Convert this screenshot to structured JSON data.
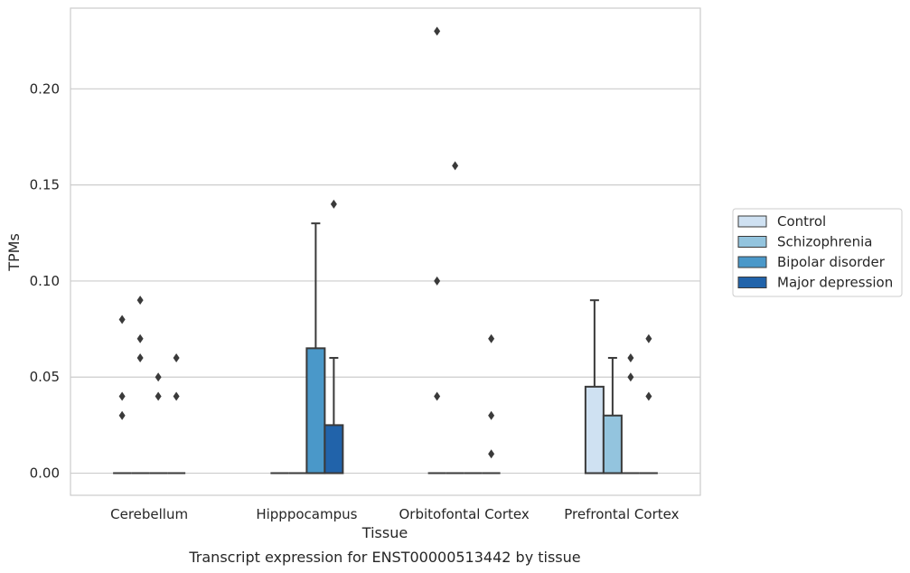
{
  "chart_data": {
    "type": "box",
    "xlabel": "Tissue",
    "ylabel": "TPMs",
    "caption": "Transcript expression for ENST00000513442 by tissue",
    "categories": [
      "Cerebellum",
      "Hipppocampus",
      "Orbitofontal Cortex",
      "Prefrontal Cortex"
    ],
    "ylim": [
      -0.0115,
      0.242
    ],
    "yticks": [
      0.0,
      0.05,
      0.1,
      0.15,
      0.2
    ],
    "ytick_labels": [
      "0.00",
      "0.05",
      "0.10",
      "0.15",
      "0.20"
    ],
    "grid": true,
    "legend_position": "right",
    "series": [
      {
        "name": "Control",
        "color": "#cfe1f2",
        "boxes": [
          {
            "category": "Cerebellum",
            "q1": 0,
            "median": 0,
            "q3": 0,
            "whisker_low": 0,
            "whisker_high": 0,
            "outliers": [
              0.03,
              0.04,
              0.08
            ]
          },
          {
            "category": "Hipppocampus",
            "q1": 0,
            "median": 0,
            "q3": 0,
            "whisker_low": 0,
            "whisker_high": 0,
            "outliers": []
          },
          {
            "category": "Orbitofontal Cortex",
            "q1": 0,
            "median": 0,
            "q3": 0,
            "whisker_low": 0,
            "whisker_high": 0,
            "outliers": [
              0.04,
              0.1,
              0.23
            ]
          },
          {
            "category": "Prefrontal Cortex",
            "q1": 0,
            "median": 0,
            "q3": 0.045,
            "whisker_low": 0,
            "whisker_high": 0.09,
            "outliers": []
          }
        ]
      },
      {
        "name": "Schizophrenia",
        "color": "#93c4de",
        "boxes": [
          {
            "category": "Cerebellum",
            "q1": 0,
            "median": 0,
            "q3": 0,
            "whisker_low": 0,
            "whisker_high": 0,
            "outliers": [
              0.06,
              0.07,
              0.09
            ]
          },
          {
            "category": "Hipppocampus",
            "q1": 0,
            "median": 0,
            "q3": 0,
            "whisker_low": 0,
            "whisker_high": 0,
            "outliers": []
          },
          {
            "category": "Orbitofontal Cortex",
            "q1": 0,
            "median": 0,
            "q3": 0,
            "whisker_low": 0,
            "whisker_high": 0,
            "outliers": [
              0.16
            ]
          },
          {
            "category": "Prefrontal Cortex",
            "q1": 0,
            "median": 0,
            "q3": 0.03,
            "whisker_low": 0,
            "whisker_high": 0.06,
            "outliers": []
          }
        ]
      },
      {
        "name": "Bipolar disorder",
        "color": "#4a98c9",
        "boxes": [
          {
            "category": "Cerebellum",
            "q1": 0,
            "median": 0,
            "q3": 0,
            "whisker_low": 0,
            "whisker_high": 0,
            "outliers": [
              0.04,
              0.05
            ]
          },
          {
            "category": "Hipppocampus",
            "q1": 0,
            "median": 0,
            "q3": 0.065,
            "whisker_low": 0,
            "whisker_high": 0.13,
            "outliers": []
          },
          {
            "category": "Orbitofontal Cortex",
            "q1": 0,
            "median": 0,
            "q3": 0,
            "whisker_low": 0,
            "whisker_high": 0,
            "outliers": []
          },
          {
            "category": "Prefrontal Cortex",
            "q1": 0,
            "median": 0,
            "q3": 0,
            "whisker_low": 0,
            "whisker_high": 0,
            "outliers": [
              0.05,
              0.06
            ]
          }
        ]
      },
      {
        "name": "Major depression",
        "color": "#2163aa",
        "boxes": [
          {
            "category": "Cerebellum",
            "q1": 0,
            "median": 0,
            "q3": 0,
            "whisker_low": 0,
            "whisker_high": 0,
            "outliers": [
              0.04,
              0.06
            ]
          },
          {
            "category": "Hipppocampus",
            "q1": 0,
            "median": 0,
            "q3": 0.025,
            "whisker_low": 0,
            "whisker_high": 0.06,
            "outliers": [
              0.14
            ]
          },
          {
            "category": "Orbitofontal Cortex",
            "q1": 0,
            "median": 0,
            "q3": 0,
            "whisker_low": 0,
            "whisker_high": 0,
            "outliers": [
              0.01,
              0.03,
              0.07
            ]
          },
          {
            "category": "Prefrontal Cortex",
            "q1": 0,
            "median": 0,
            "q3": 0,
            "whisker_low": 0,
            "whisker_high": 0,
            "outliers": [
              0.04,
              0.07
            ]
          }
        ]
      }
    ]
  }
}
